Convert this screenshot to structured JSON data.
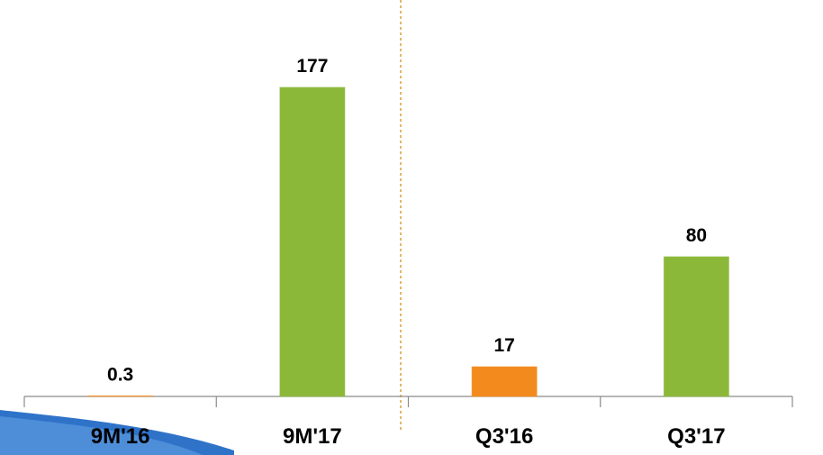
{
  "chart_data": {
    "type": "bar",
    "categories": [
      "9M'16",
      "9M'17",
      "Q3'16",
      "Q3'17"
    ],
    "values": [
      0.3,
      177,
      17,
      80
    ],
    "colors": [
      "#f28a1e",
      "#8cb83a",
      "#f28a1e",
      "#8cb83a"
    ]
  }
}
